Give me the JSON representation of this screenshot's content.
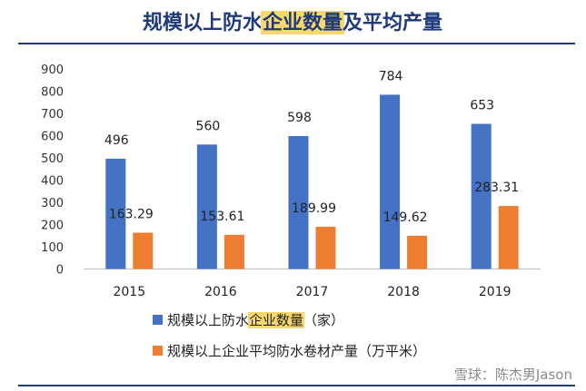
{
  "chart_data": {
    "type": "bar",
    "title_parts": [
      {
        "text": "规模以上防水",
        "highlight": false
      },
      {
        "text": "企业数量",
        "highlight": true
      },
      {
        "text": "及平均产量",
        "highlight": false
      }
    ],
    "categories": [
      "2015",
      "2016",
      "2017",
      "2018",
      "2019"
    ],
    "series": [
      {
        "name": "规模以上防水企业数量（家）",
        "name_parts": [
          {
            "text": "规模以上防水",
            "highlight": false
          },
          {
            "text": "企业数量",
            "highlight": true
          },
          {
            "text": "（家）",
            "highlight": false
          }
        ],
        "values": [
          496,
          560,
          598,
          784,
          653
        ],
        "labels": [
          "496",
          "560",
          "598",
          "784",
          "653"
        ],
        "color": "#4472c4"
      },
      {
        "name": "规模以上企业平均防水卷材产量（万平米）",
        "name_parts": [
          {
            "text": "规模以上企业平均防水卷材产量（万平米）",
            "highlight": false
          }
        ],
        "values": [
          163.29,
          153.61,
          189.99,
          149.62,
          283.31
        ],
        "labels": [
          "163.29",
          "153.61",
          "189.99",
          "149.62",
          "283.31"
        ],
        "color": "#ed7d31"
      }
    ],
    "ylim": [
      0,
      900
    ],
    "yticks": [
      0,
      100,
      200,
      300,
      400,
      500,
      600,
      700,
      800,
      900
    ],
    "xlabel": "",
    "ylabel": "",
    "grid": false,
    "legend_position": "bottom"
  },
  "title_rule_color": "#1f3a7a",
  "highlight_color": "#f7d96b",
  "watermark": "雪球：陈杰男Jason"
}
